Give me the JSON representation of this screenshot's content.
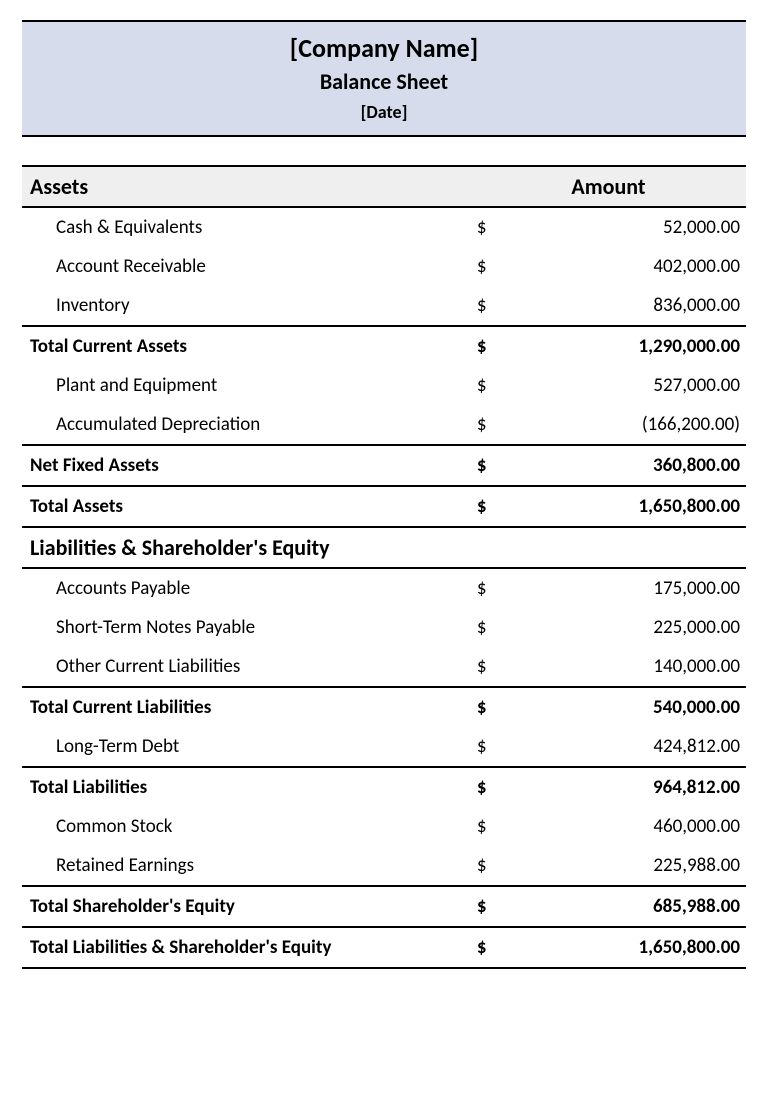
{
  "header": {
    "company": "[Company Name]",
    "title": "Balance Sheet",
    "date": "[Date]"
  },
  "colors": {
    "header_bg": "#d7dced",
    "section_bg": "#efefef",
    "border": "#000000",
    "text": "#000000"
  },
  "typography": {
    "font_family": "Calibri",
    "header_company_pt": 20,
    "header_title_pt": 17,
    "header_date_pt": 14,
    "section_head_pt": 17,
    "row_pt": 14
  },
  "columns": {
    "label_header": "Assets",
    "amount_header": "Amount",
    "currency_symbol": "$"
  },
  "rows": [
    {
      "type": "item",
      "label": "Cash & Equivalents",
      "value": "52,000.00"
    },
    {
      "type": "item",
      "label": "Account Receivable",
      "value": "402,000.00"
    },
    {
      "type": "item",
      "label": "Inventory",
      "value": "836,000.00"
    },
    {
      "type": "total",
      "label": "Total Current Assets",
      "value": "1,290,000.00"
    },
    {
      "type": "item",
      "label": "Plant and Equipment",
      "value": "527,000.00"
    },
    {
      "type": "item",
      "label": "Accumulated Depreciation",
      "value": "(166,200.00)"
    },
    {
      "type": "total",
      "label": "Net Fixed Assets",
      "value": "360,800.00"
    },
    {
      "type": "total",
      "label": "Total Assets",
      "value": "1,650,800.00"
    },
    {
      "type": "subhead",
      "label": "Liabilities & Shareholder's Equity"
    },
    {
      "type": "item",
      "label": "Accounts Payable",
      "value": "175,000.00"
    },
    {
      "type": "item",
      "label": "Short-Term Notes Payable",
      "value": "225,000.00"
    },
    {
      "type": "item",
      "label": "Other Current Liabilities",
      "value": "140,000.00"
    },
    {
      "type": "total",
      "label": "Total Current Liabilities",
      "value": "540,000.00"
    },
    {
      "type": "item",
      "label": "Long-Term Debt",
      "value": "424,812.00"
    },
    {
      "type": "total",
      "label": "Total Liabilities",
      "value": "964,812.00"
    },
    {
      "type": "item",
      "label": "Common Stock",
      "value": "460,000.00"
    },
    {
      "type": "item",
      "label": "Retained Earnings",
      "value": "225,988.00"
    },
    {
      "type": "total",
      "label": "Total Shareholder's Equity",
      "value": "685,988.00"
    },
    {
      "type": "grand",
      "label": "Total Liabilities & Shareholder's Equity",
      "value": "1,650,800.00"
    }
  ]
}
